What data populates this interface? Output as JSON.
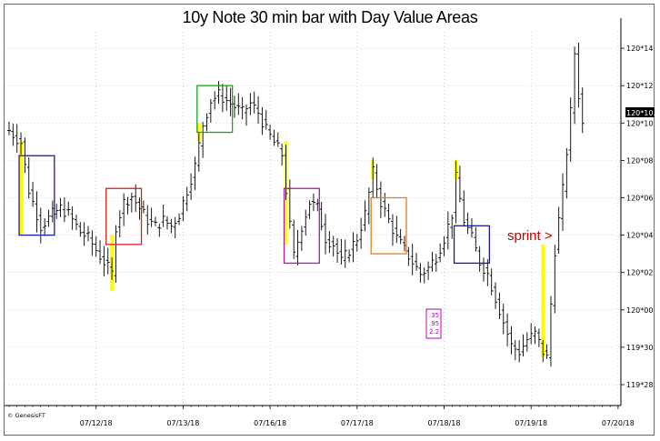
{
  "chart_data": {
    "type": "ohlc-bar",
    "title": "10y Note 30 min bar with Day Value Areas",
    "watermark": "© GenesisFT",
    "last_price_label": "120*10.5",
    "annotation": "sprint >",
    "stats_box": [
      ".35",
      ".95",
      "2.2"
    ],
    "y_ticks": [
      {
        "label": "120*14",
        "value": 120.4375
      },
      {
        "label": "120*12",
        "value": 120.375
      },
      {
        "label": "120*10",
        "value": 120.3125
      },
      {
        "label": "120*08",
        "value": 120.25
      },
      {
        "label": "120*06",
        "value": 120.1875
      },
      {
        "label": "120*04",
        "value": 120.125
      },
      {
        "label": "120*02",
        "value": 120.0625
      },
      {
        "label": "120*00",
        "value": 120.0
      },
      {
        "label": "119*30",
        "value": 119.9375
      },
      {
        "label": "119*28",
        "value": 119.875
      }
    ],
    "x_ticks": [
      {
        "label": "07/12/18",
        "bar": 22
      },
      {
        "label": "07/13/18",
        "bar": 44
      },
      {
        "label": "07/16/18",
        "bar": 66
      },
      {
        "label": "07/17/18",
        "bar": 88
      },
      {
        "label": "07/18/18",
        "bar": 110
      },
      {
        "label": "07/19/18",
        "bar": 132
      },
      {
        "label": "07/20/18",
        "bar": 154
      }
    ],
    "ylim": [
      119.84,
      120.465
    ],
    "bar_count": 155,
    "grid": true,
    "value_areas": [
      {
        "color": "#1a1aa0",
        "start_bar": 3,
        "end_bar": 11,
        "high": 120.2578,
        "low": 120.125
      },
      {
        "color": "#d02020",
        "start_bar": 25,
        "end_bar": 33,
        "high": 120.2031,
        "low": 120.1094
      },
      {
        "color": "#20a020",
        "start_bar": 48,
        "end_bar": 56,
        "high": 120.375,
        "low": 120.2969
      },
      {
        "color": "#a020a0",
        "start_bar": 70,
        "end_bar": 78,
        "high": 120.2031,
        "low": 120.0781
      },
      {
        "color": "#e08020",
        "start_bar": 92,
        "end_bar": 100,
        "high": 120.1875,
        "low": 120.0938
      },
      {
        "color": "#1a1aa0",
        "start_bar": 113,
        "end_bar": 121,
        "high": 120.1406,
        "low": 120.0781
      }
    ],
    "yellow_highlights": [
      {
        "bar": 3,
        "high": 120.2813,
        "low": 120.125
      },
      {
        "bar": 26,
        "high": 120.125,
        "low": 120.0313
      },
      {
        "bar": 48,
        "high": 120.3125,
        "low": 120.2813
      },
      {
        "bar": 70,
        "high": 120.2813,
        "low": 120.1094
      },
      {
        "bar": 92,
        "high": 120.25,
        "low": 120.2188
      },
      {
        "bar": 113,
        "high": 120.25,
        "low": 120.2188
      },
      {
        "bar": 135,
        "high": 120.1094,
        "low": 119.9219
      }
    ],
    "close_path": [
      [
        0,
        120.3
      ],
      [
        3,
        120.28
      ],
      [
        5,
        120.2
      ],
      [
        8,
        120.14
      ],
      [
        11,
        120.16
      ],
      [
        13,
        120.17
      ],
      [
        15,
        120.16
      ],
      [
        18,
        120.13
      ],
      [
        20,
        120.12
      ],
      [
        22,
        120.1
      ],
      [
        24,
        120.08
      ],
      [
        26,
        120.06
      ],
      [
        27,
        120.14
      ],
      [
        29,
        120.18
      ],
      [
        31,
        120.19
      ],
      [
        33,
        120.17
      ],
      [
        35,
        120.15
      ],
      [
        37,
        120.14
      ],
      [
        39,
        120.15
      ],
      [
        41,
        120.14
      ],
      [
        43,
        120.16
      ],
      [
        45,
        120.2
      ],
      [
        47,
        120.24
      ],
      [
        49,
        120.31
      ],
      [
        51,
        120.35
      ],
      [
        53,
        120.36
      ],
      [
        55,
        120.35
      ],
      [
        57,
        120.34
      ],
      [
        59,
        120.33
      ],
      [
        61,
        120.345
      ],
      [
        63,
        120.33
      ],
      [
        65,
        120.3
      ],
      [
        67,
        120.28
      ],
      [
        69,
        120.26
      ],
      [
        71,
        120.14
      ],
      [
        72,
        120.09
      ],
      [
        74,
        120.14
      ],
      [
        76,
        120.18
      ],
      [
        78,
        120.17
      ],
      [
        80,
        120.12
      ],
      [
        82,
        120.11
      ],
      [
        84,
        120.08
      ],
      [
        86,
        120.1
      ],
      [
        88,
        120.12
      ],
      [
        90,
        120.16
      ],
      [
        92,
        120.23
      ],
      [
        94,
        120.18
      ],
      [
        96,
        120.15
      ],
      [
        98,
        120.12
      ],
      [
        100,
        120.1
      ],
      [
        102,
        120.08
      ],
      [
        104,
        120.06
      ],
      [
        106,
        120.07
      ],
      [
        108,
        120.09
      ],
      [
        110,
        120.12
      ],
      [
        112,
        120.16
      ],
      [
        113,
        120.22
      ],
      [
        115,
        120.15
      ],
      [
        117,
        120.12
      ],
      [
        119,
        120.08
      ],
      [
        121,
        120.06
      ],
      [
        123,
        120.02
      ],
      [
        125,
        119.98
      ],
      [
        127,
        119.94
      ],
      [
        129,
        119.93
      ],
      [
        131,
        119.95
      ],
      [
        133,
        119.96
      ],
      [
        135,
        119.93
      ],
      [
        136,
        119.92
      ],
      [
        138,
        120.1
      ],
      [
        140,
        120.2
      ],
      [
        142,
        120.33
      ],
      [
        143,
        120.43
      ],
      [
        144,
        120.36
      ],
      [
        145,
        120.31
      ]
    ]
  }
}
